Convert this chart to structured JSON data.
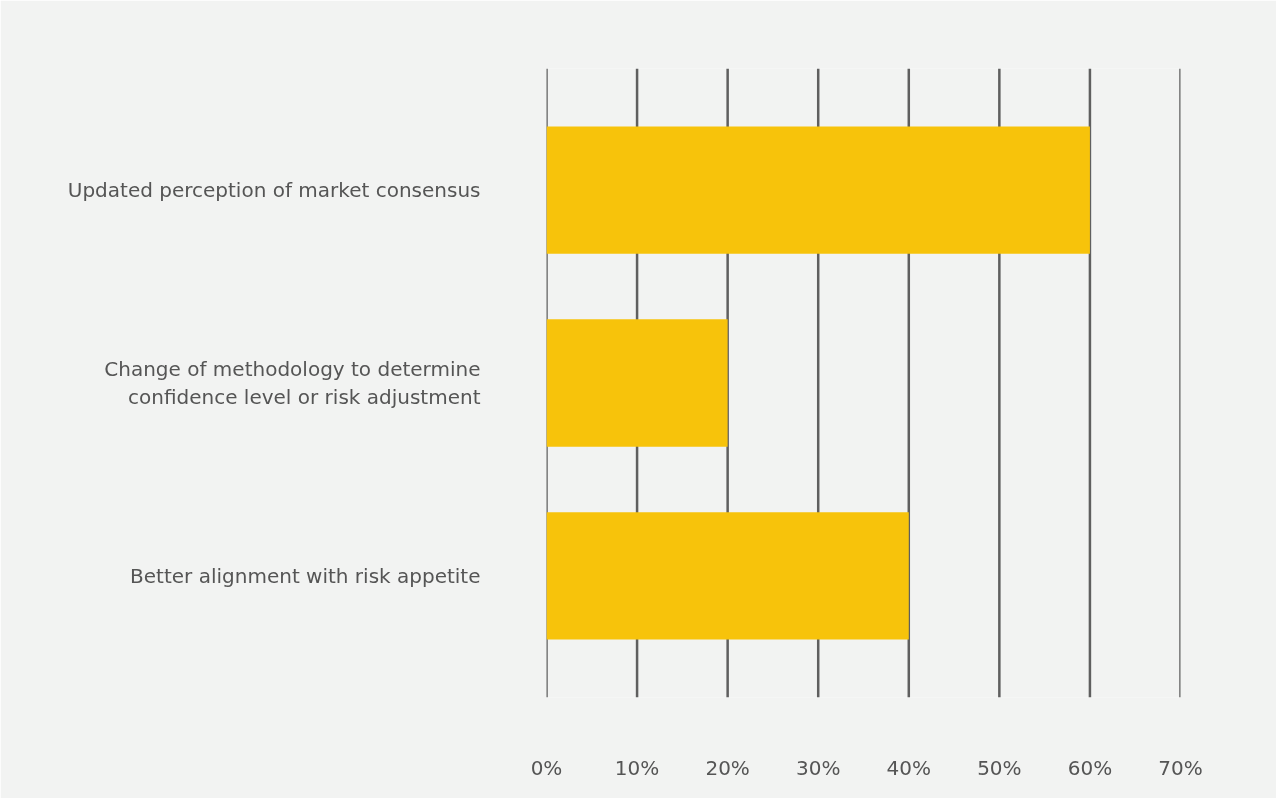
{
  "chart_data": {
    "type": "bar",
    "orientation": "horizontal",
    "categories": [
      "Updated perception of market consensus",
      "Change of methodology to determine confidence level or risk adjustment",
      "Better alignment with risk appetite"
    ],
    "values": [
      60,
      20,
      40
    ],
    "color": "#f7c30b",
    "xlim": [
      0,
      70
    ],
    "xticks": [
      {
        "value": 0,
        "label": "0%"
      },
      {
        "value": 10,
        "label": "10%"
      },
      {
        "value": 20,
        "label": "20%"
      },
      {
        "value": 30,
        "label": "30%"
      },
      {
        "value": 40,
        "label": "40%"
      },
      {
        "value": 50,
        "label": "50%"
      },
      {
        "value": 60,
        "label": "60%"
      },
      {
        "value": 70,
        "label": "70%"
      }
    ],
    "grid": "x"
  }
}
